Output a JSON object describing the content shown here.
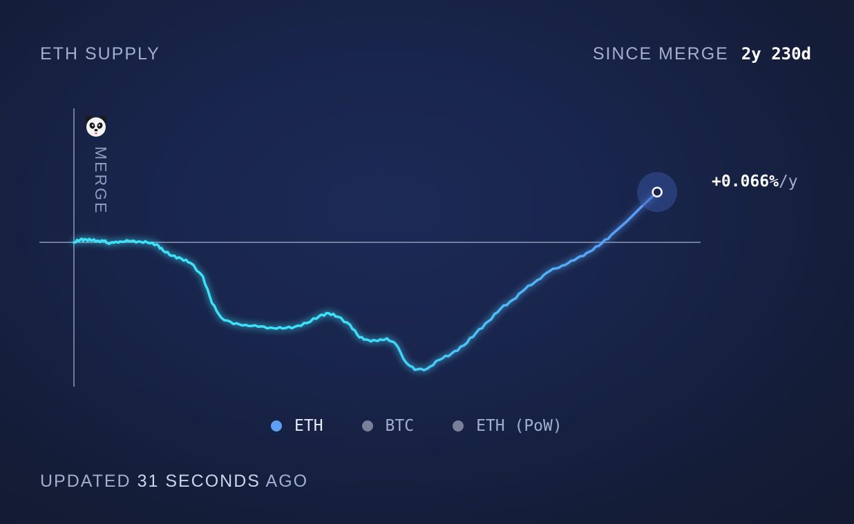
{
  "header": {
    "title": "ETH SUPPLY",
    "since_label": "SINCE MERGE",
    "since_value": "2y 230d"
  },
  "chart_data": {
    "type": "line",
    "title": "ETH SUPPLY",
    "annotation_vertical": "MERGE",
    "end_label_value": "+0.066%",
    "end_label_unit": "/y",
    "grid": false,
    "legend_position": "bottom-center",
    "colors": {
      "line_start": "#3ee1f8",
      "line_end": "#5d95f7",
      "baseline": "#a3afcf",
      "end_dot_halo": "#3b5bb0"
    },
    "x_domain_days": [
      0,
      960
    ],
    "series": [
      {
        "name": "ETH",
        "points": [
          [
            0,
            0
          ],
          [
            10,
            0.014
          ],
          [
            20,
            0.016
          ],
          [
            30,
            0.011
          ],
          [
            40,
            0.008
          ],
          [
            50,
            0.007
          ],
          [
            55,
            -0.004
          ],
          [
            65,
            -0.003
          ],
          [
            75,
            0.005
          ],
          [
            90,
            0.006
          ],
          [
            105,
            0.005
          ],
          [
            120,
            -0.002
          ],
          [
            135,
            -0.012
          ],
          [
            145,
            -0.045
          ],
          [
            160,
            -0.075
          ],
          [
            175,
            -0.091
          ],
          [
            190,
            -0.115
          ],
          [
            210,
            -0.19
          ],
          [
            225,
            -0.34
          ],
          [
            240,
            -0.42
          ],
          [
            260,
            -0.455
          ],
          [
            280,
            -0.46
          ],
          [
            300,
            -0.47
          ],
          [
            320,
            -0.475
          ],
          [
            340,
            -0.48
          ],
          [
            360,
            -0.47
          ],
          [
            380,
            -0.45
          ],
          [
            400,
            -0.41
          ],
          [
            415,
            -0.395
          ],
          [
            430,
            -0.415
          ],
          [
            450,
            -0.46
          ],
          [
            465,
            -0.53
          ],
          [
            480,
            -0.545
          ],
          [
            495,
            -0.55
          ],
          [
            510,
            -0.535
          ],
          [
            525,
            -0.57
          ],
          [
            540,
            -0.665
          ],
          [
            555,
            -0.71
          ],
          [
            575,
            -0.705
          ],
          [
            595,
            -0.655
          ],
          [
            615,
            -0.62
          ],
          [
            635,
            -0.575
          ],
          [
            655,
            -0.505
          ],
          [
            675,
            -0.44
          ],
          [
            695,
            -0.37
          ],
          [
            715,
            -0.32
          ],
          [
            735,
            -0.26
          ],
          [
            755,
            -0.21
          ],
          [
            775,
            -0.16
          ],
          [
            795,
            -0.13
          ],
          [
            815,
            -0.1
          ],
          [
            835,
            -0.06
          ],
          [
            855,
            -0.02
          ],
          [
            875,
            0.04
          ],
          [
            900,
            0.115
          ],
          [
            925,
            0.2
          ],
          [
            950,
            0.28
          ]
        ]
      }
    ],
    "legend": [
      {
        "label": "ETH",
        "color": "#5fa0f7",
        "active": true
      },
      {
        "label": "BTC",
        "color": "#7a809a",
        "active": false
      },
      {
        "label": "ETH (PoW)",
        "color": "#7a809a",
        "active": false
      }
    ]
  },
  "footer": {
    "prefix": "UPDATED",
    "number": "31",
    "unit": "SECONDS",
    "suffix": "AGO"
  }
}
